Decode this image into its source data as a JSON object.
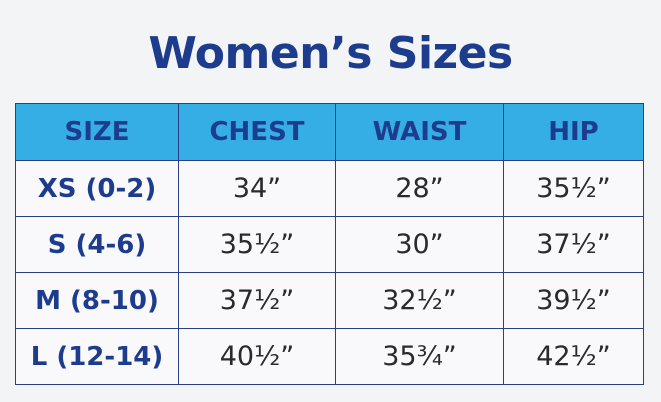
{
  "header": {
    "title": "Women’s Sizes"
  },
  "table": {
    "columns": [
      "SIZE",
      "CHEST",
      "WAIST",
      "HIP"
    ],
    "rows": [
      [
        "XS (0-2)",
        "34”",
        "28”",
        "35½”"
      ],
      [
        "S (4-6)",
        "35½”",
        "30”",
        "37½”"
      ],
      [
        "M (8-10)",
        "37½”",
        "32½”",
        "39½”"
      ],
      [
        "L (12-14)",
        "40½”",
        "35¾”",
        "42½”"
      ]
    ]
  }
}
